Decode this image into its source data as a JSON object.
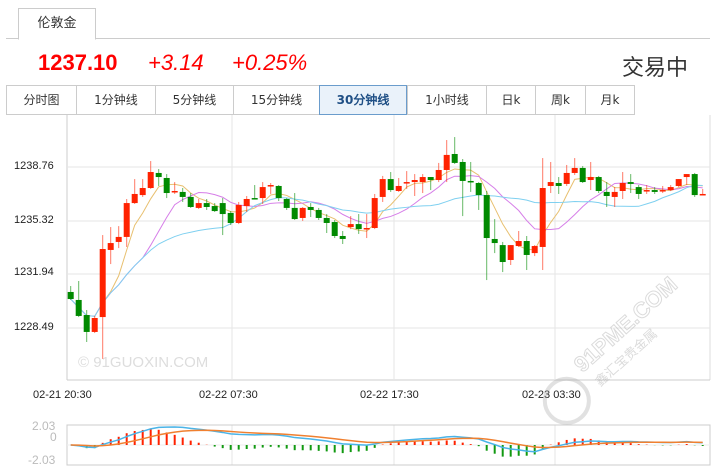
{
  "tab": {
    "label": "伦敦金"
  },
  "quote": {
    "last": "1237.10",
    "change": "+3.14",
    "change_pct": "+0.25%",
    "status": "交易中"
  },
  "periods": [
    {
      "label": "分时图"
    },
    {
      "label": "1分钟线"
    },
    {
      "label": "5分钟线"
    },
    {
      "label": "15分钟线"
    },
    {
      "label": "30分钟线",
      "active": true
    },
    {
      "label": "1小时线"
    },
    {
      "label": "日k"
    },
    {
      "label": "周k"
    },
    {
      "label": "月k"
    }
  ],
  "chart_data": {
    "type": "candlestick",
    "y_ticks": [
      "1238.76",
      "1235.32",
      "1231.94",
      "1228.49"
    ],
    "ylim": [
      1225.9,
      1241.5
    ],
    "x_ticks": [
      "02-21 20:30",
      "02-22 07:30",
      "02-22 17:30",
      "02-23 03:30"
    ],
    "candles_ohlc": [
      [
        1230.79,
        1231.17,
        1230.28,
        1230.34
      ],
      [
        1230.28,
        1231.49,
        1229.19,
        1229.26
      ],
      [
        1229.32,
        1229.64,
        1227.6,
        1228.24
      ],
      [
        1228.24,
        1229.26,
        1228.17,
        1229.13
      ],
      [
        1229.19,
        1234.42,
        1226.52,
        1233.53
      ],
      [
        1233.47,
        1234.93,
        1232.57,
        1233.91
      ],
      [
        1233.98,
        1234.99,
        1233.59,
        1234.3
      ],
      [
        1234.3,
        1236.72,
        1233.66,
        1236.46
      ],
      [
        1236.46,
        1237.99,
        1236.4,
        1237.04
      ],
      [
        1236.97,
        1237.99,
        1236.85,
        1237.42
      ],
      [
        1237.42,
        1239.14,
        1237.36,
        1238.44
      ],
      [
        1238.38,
        1238.63,
        1237.55,
        1238.12
      ],
      [
        1238.06,
        1238.31,
        1236.78,
        1237.1
      ],
      [
        1237.17,
        1237.8,
        1237.04,
        1237.23
      ],
      [
        1237.17,
        1237.42,
        1236.53,
        1236.85
      ],
      [
        1236.85,
        1237.1,
        1236.15,
        1236.21
      ],
      [
        1236.15,
        1236.72,
        1236.08,
        1236.46
      ],
      [
        1236.46,
        1236.72,
        1236.02,
        1236.21
      ],
      [
        1236.27,
        1236.46,
        1235.89,
        1235.95
      ],
      [
        1236.46,
        1236.78,
        1234.42,
        1235.76
      ],
      [
        1235.83,
        1235.95,
        1235.06,
        1235.19
      ],
      [
        1235.19,
        1236.53,
        1235.12,
        1236.34
      ],
      [
        1236.27,
        1236.91,
        1235.89,
        1236.72
      ],
      [
        1236.78,
        1237.61,
        1236.72,
        1236.72
      ],
      [
        1236.78,
        1237.8,
        1236.4,
        1237.48
      ],
      [
        1237.55,
        1237.74,
        1237.04,
        1237.61
      ],
      [
        1237.55,
        1237.61,
        1236.59,
        1236.78
      ],
      [
        1236.72,
        1236.78,
        1236.02,
        1236.15
      ],
      [
        1236.15,
        1237.1,
        1235.38,
        1235.44
      ],
      [
        1235.51,
        1236.21,
        1235.32,
        1236.15
      ],
      [
        1236.21,
        1236.46,
        1235.57,
        1236.02
      ],
      [
        1236.02,
        1236.15,
        1235.38,
        1235.51
      ],
      [
        1235.51,
        1235.76,
        1234.55,
        1235.19
      ],
      [
        1235.25,
        1235.38,
        1234.23,
        1234.36
      ],
      [
        1234.36,
        1234.68,
        1233.85,
        1234.17
      ],
      [
        1234.93,
        1235.63,
        1234.8,
        1235.12
      ],
      [
        1235.12,
        1235.76,
        1234.49,
        1234.8
      ],
      [
        1234.8,
        1235.76,
        1234.23,
        1234.87
      ],
      [
        1234.87,
        1237.04,
        1234.8,
        1236.78
      ],
      [
        1236.85,
        1238.19,
        1236.53,
        1237.99
      ],
      [
        1237.99,
        1238.44,
        1237.17,
        1237.29
      ],
      [
        1237.23,
        1238.06,
        1237.17,
        1237.55
      ],
      [
        1237.74,
        1238.5,
        1237.36,
        1237.8
      ],
      [
        1237.8,
        1238.31,
        1236.91,
        1237.93
      ],
      [
        1237.8,
        1238.31,
        1237.1,
        1238.12
      ],
      [
        1238.12,
        1238.12,
        1237.29,
        1237.93
      ],
      [
        1237.93,
        1239.02,
        1237.8,
        1238.57
      ],
      [
        1238.57,
        1240.48,
        1237.8,
        1239.53
      ],
      [
        1239.59,
        1240.67,
        1238.95,
        1239.02
      ],
      [
        1239.08,
        1239.27,
        1235.63,
        1237.87
      ],
      [
        1237.87,
        1239.08,
        1237.17,
        1237.8
      ],
      [
        1237.74,
        1237.8,
        1236.02,
        1236.97
      ],
      [
        1236.97,
        1237.23,
        1231.55,
        1234.23
      ],
      [
        1234.17,
        1235.44,
        1233.27,
        1233.91
      ],
      [
        1233.78,
        1233.98,
        1232.06,
        1232.7
      ],
      [
        1232.83,
        1233.78,
        1232.51,
        1233.78
      ],
      [
        1233.72,
        1234.68,
        1233.66,
        1234.04
      ],
      [
        1234.04,
        1234.36,
        1232.19,
        1233.15
      ],
      [
        1233.27,
        1233.78,
        1233.08,
        1233.72
      ],
      [
        1233.66,
        1239.33,
        1232.19,
        1237.42
      ],
      [
        1237.55,
        1239.08,
        1237.1,
        1237.8
      ],
      [
        1237.74,
        1238.12,
        1237.04,
        1237.55
      ],
      [
        1237.68,
        1238.89,
        1237.55,
        1238.38
      ],
      [
        1238.38,
        1239.33,
        1238.25,
        1238.7
      ],
      [
        1238.7,
        1238.82,
        1237.74,
        1237.8
      ],
      [
        1237.93,
        1239.08,
        1237.29,
        1238.12
      ],
      [
        1238.12,
        1238.19,
        1237.1,
        1237.23
      ],
      [
        1237.17,
        1237.8,
        1236.21,
        1236.91
      ],
      [
        1236.85,
        1237.48,
        1236.21,
        1237.17
      ],
      [
        1237.23,
        1238.44,
        1236.72,
        1237.74
      ],
      [
        1237.8,
        1238.31,
        1237.1,
        1237.68
      ],
      [
        1237.48,
        1237.61,
        1236.72,
        1237.04
      ],
      [
        1237.23,
        1237.61,
        1237.04,
        1237.29
      ],
      [
        1237.29,
        1237.48,
        1237.04,
        1237.17
      ],
      [
        1237.23,
        1237.55,
        1237.1,
        1237.29
      ],
      [
        1237.29,
        1237.61,
        1237.23,
        1237.48
      ],
      [
        1237.55,
        1237.99,
        1237.48,
        1237.99
      ],
      [
        1238.12,
        1238.31,
        1237.61,
        1238.31
      ],
      [
        1238.31,
        1238.38,
        1236.85,
        1236.97
      ],
      [
        1237.04,
        1237.36,
        1236.97,
        1237.04
      ]
    ],
    "moving_averages": [
      {
        "period": 5,
        "color": "#e8c070"
      },
      {
        "period": 10,
        "color": "#d67ee8"
      },
      {
        "period": 20,
        "color": "#7fd0f0"
      }
    ],
    "up_color": "#ff2200",
    "down_color": "#008a00",
    "grid": true
  },
  "macd": {
    "ticks": [
      "2.03",
      "0",
      "-2.03"
    ],
    "dif_color": "#4ab4e8",
    "dea_color": "#f08030"
  },
  "watermarks": {
    "left": "© 91GUOXIN.COM",
    "right": "91PME.COM",
    "right_sub": "鑫汇宝贵金属"
  }
}
